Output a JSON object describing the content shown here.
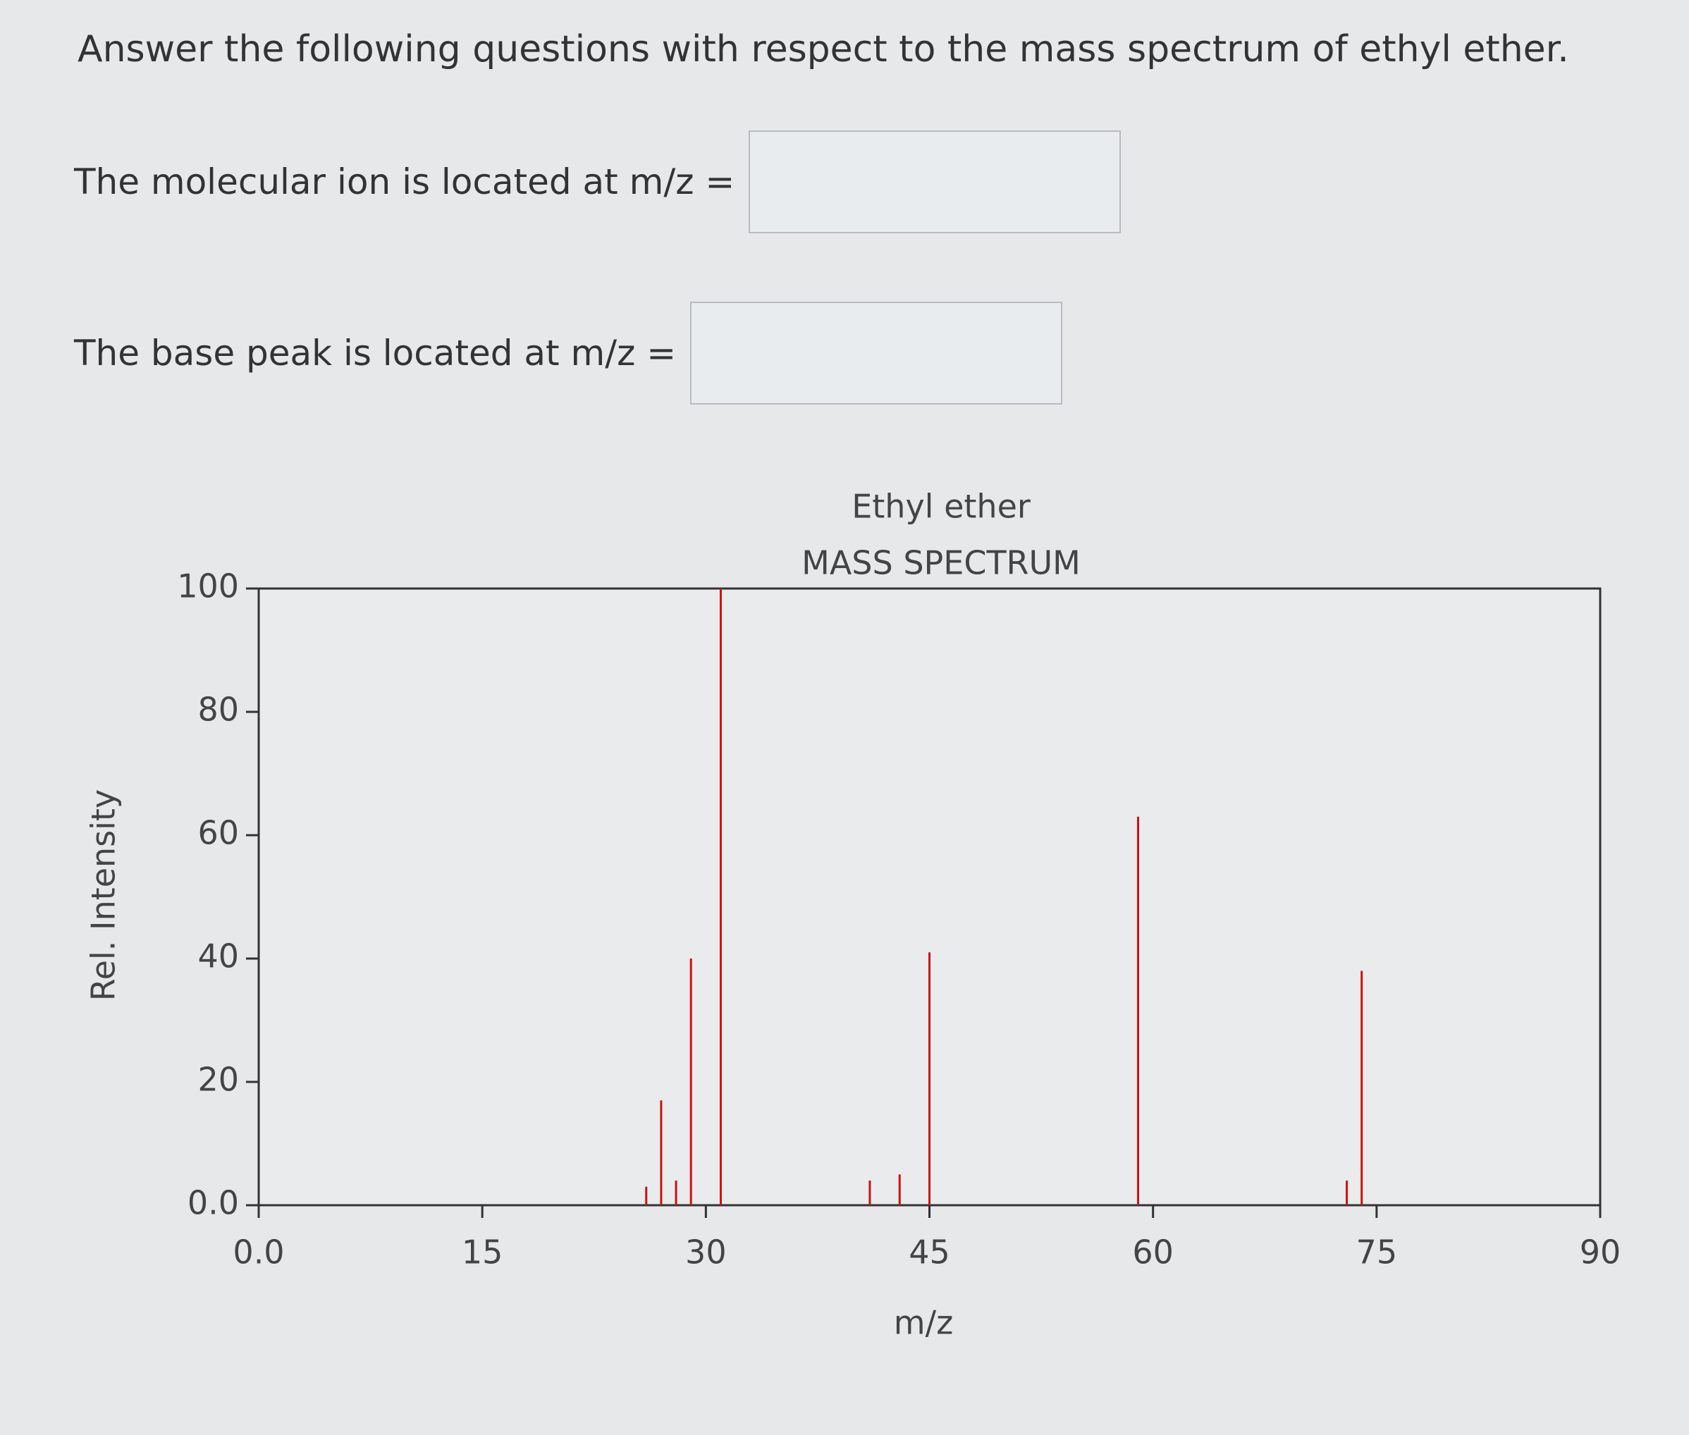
{
  "question": {
    "prompt": "Answer the following questions with respect to the mass spectrum of ethyl ether.",
    "fields": [
      {
        "label": "The molecular ion is located at m/z ="
      },
      {
        "label": "The base peak is located at m/z ="
      }
    ]
  },
  "chart_data": {
    "type": "bar",
    "title": "Ethyl ether",
    "subtitle": "MASS SPECTRUM",
    "x_label": "m/z",
    "y_label": "Rel. Intensity",
    "x": [
      26,
      27,
      28,
      29,
      31,
      41,
      43,
      45,
      59,
      73,
      74
    ],
    "values": [
      3,
      17,
      4,
      40,
      100,
      4,
      5,
      41,
      63,
      4,
      38
    ],
    "color": "#cc1111",
    "xlim": [
      0,
      90
    ],
    "ylim": [
      0,
      100
    ],
    "xticks": [
      {
        "value": 0,
        "label": "0.0"
      },
      15,
      30,
      45,
      60,
      75,
      90
    ],
    "yticks": [
      {
        "value": 0,
        "label": "0.0"
      },
      20,
      40,
      60,
      80,
      100
    ]
  }
}
